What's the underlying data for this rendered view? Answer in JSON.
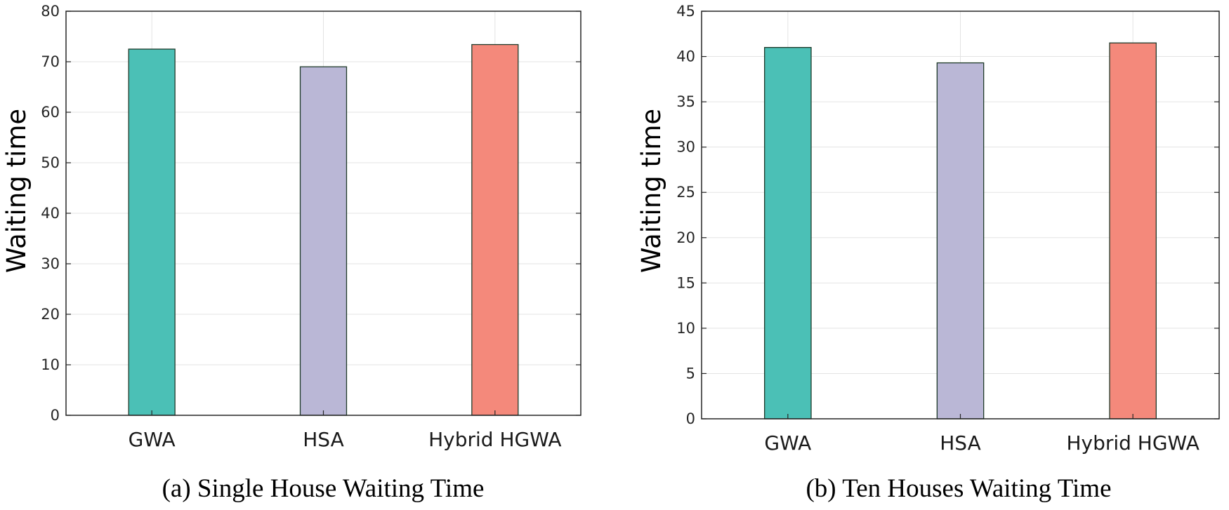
{
  "chart_data": [
    {
      "type": "bar",
      "caption": "(a) Single House Waiting Time",
      "ylabel": "Waiting time",
      "categories": [
        "GWA",
        "HSA",
        "Hybrid HGWA"
      ],
      "values": [
        72.5,
        69.0,
        73.4
      ],
      "colors": [
        "#4bc0b6",
        "#bab7d6",
        "#f4897b"
      ],
      "ylim": [
        0,
        80
      ],
      "yticks": [
        0,
        10,
        20,
        30,
        40,
        50,
        60,
        70,
        80
      ],
      "grid": true
    },
    {
      "type": "bar",
      "caption": "(b) Ten Houses Waiting Time",
      "ylabel": "Waiting time",
      "categories": [
        "GWA",
        "HSA",
        "Hybrid HGWA"
      ],
      "values": [
        41.0,
        39.3,
        41.5
      ],
      "colors": [
        "#4bc0b6",
        "#bab7d6",
        "#f4897b"
      ],
      "ylim": [
        0,
        45
      ],
      "yticks": [
        0,
        5,
        10,
        15,
        20,
        25,
        30,
        35,
        40,
        45
      ],
      "grid": true
    }
  ]
}
